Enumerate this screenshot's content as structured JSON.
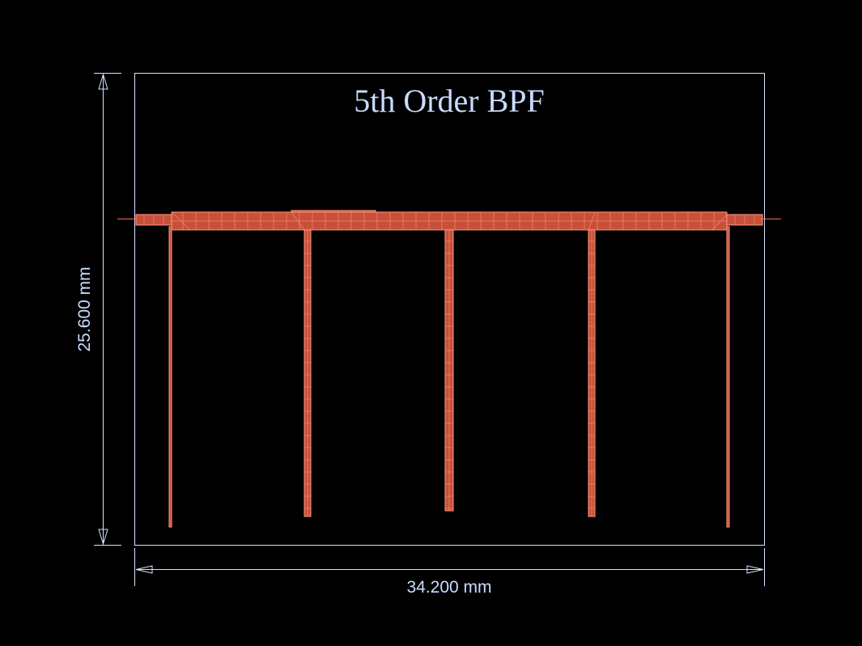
{
  "title": "5th Order BPF",
  "dimensions": {
    "width_label": "34.200 mm",
    "height_label": "25.600 mm"
  },
  "colors": {
    "background": "#000000",
    "outline": "#d6e4ff",
    "text": "#c8dcff",
    "copper_fill": "#c8503a",
    "copper_edge": "#ff9a80",
    "port": "#ff6a5a"
  },
  "filter": {
    "order": 5,
    "resonator_count": 5,
    "ports": [
      "port-1",
      "port-2"
    ]
  }
}
